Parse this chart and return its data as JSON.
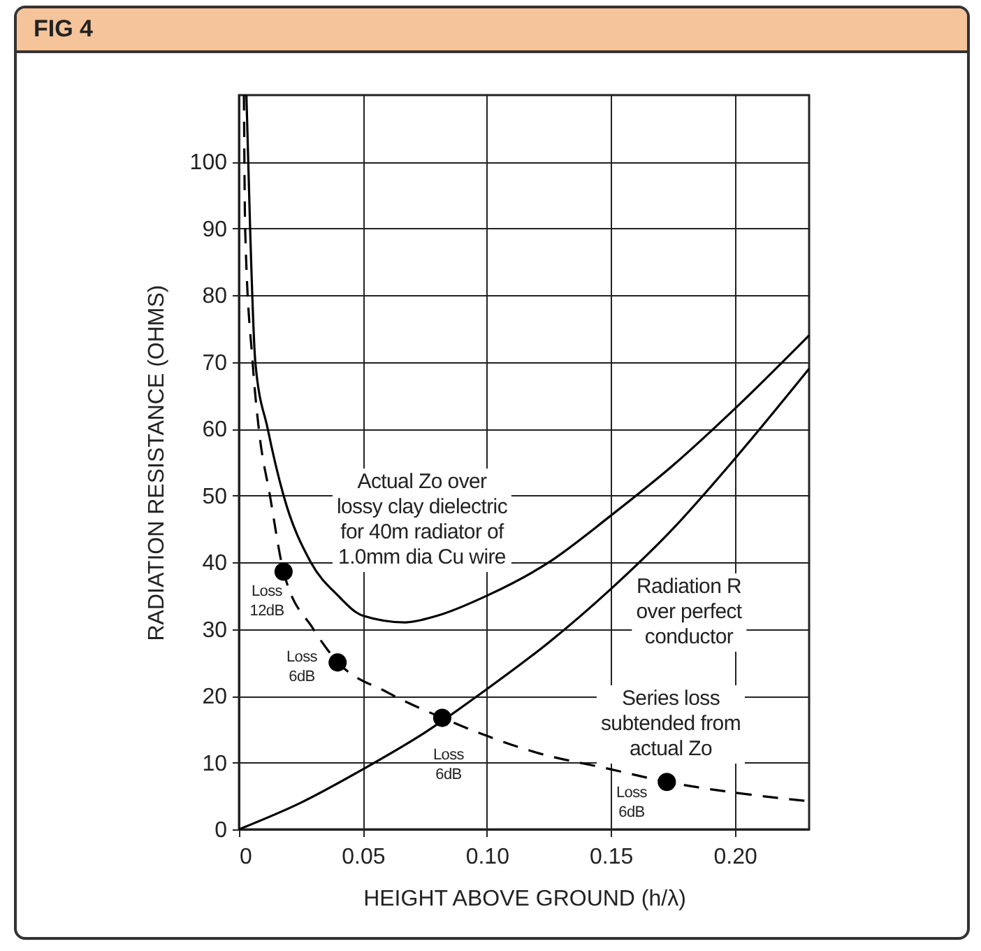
{
  "chart_data": {
    "type": "line",
    "title": "FIG 4",
    "xlabel": "HEIGHT ABOVE GROUND (h/λ)",
    "ylabel": "RADIATION RESISTANCE (OHMS)",
    "xlim": [
      0,
      0.23
    ],
    "ylim": [
      0,
      110
    ],
    "xticks": [
      0,
      0.05,
      {
        "value": 0.1,
        "label": "0.10"
      },
      0.15,
      {
        "value": 0.2,
        "label": "0.20"
      }
    ],
    "yticks": [
      0,
      10,
      20,
      30,
      40,
      50,
      60,
      70,
      80,
      90,
      100
    ],
    "grid": true,
    "series": [
      {
        "color": "#000000",
        "line_style": "solid",
        "x": [
          0.003,
          0.0045,
          0.0066,
          0.0116,
          0.018,
          0.029,
          0.04,
          0.05,
          0.067,
          0.08,
          0.1,
          0.125,
          0.15,
          0.175,
          0.2,
          0.23
        ],
        "values": [
          110,
          90,
          70,
          60,
          50,
          40,
          35,
          32,
          31,
          32,
          35,
          40,
          47,
          54.5,
          63,
          74
        ]
      },
      {
        "color": "#000000",
        "line_style": "solid",
        "x": [
          0,
          0.025,
          0.05,
          0.075,
          0.1,
          0.125,
          0.15,
          0.175,
          0.2,
          0.23
        ],
        "values": [
          0,
          4,
          9,
          14.5,
          21,
          28,
          36,
          45,
          55.5,
          69
        ]
      },
      {
        "color": "#000000",
        "line_style": "dashed",
        "x": [
          0.002,
          0.0025,
          0.0055,
          0.008,
          0.0125,
          0.018,
          0.03,
          0.04,
          0.06,
          0.082,
          0.1,
          0.12,
          0.15,
          0.1726,
          0.2,
          0.23
        ],
        "values": [
          110,
          90,
          70,
          60,
          50,
          38.6,
          30,
          25,
          20.5,
          16.7,
          14,
          11.5,
          9,
          7.1,
          5.5,
          4.2
        ]
      },
      {
        "type": "scatter",
        "color": "#000000",
        "marker": "circle",
        "x": [
          0.018,
          0.0398,
          0.082,
          0.1726
        ],
        "values": [
          38.6,
          25,
          16.7,
          7.1
        ]
      }
    ],
    "annotations": [
      "Actual Zo over\nlossy clay dielectric\nfor 40m radiator of\n1.0mm dia Cu wire",
      "Radiation R\nover perfect\nconductor",
      "Series loss\nsubtended from\nactual Zo",
      "Loss\n12dB",
      "Loss\n6dB",
      "Loss\n6dB",
      "Loss\n6dB"
    ]
  }
}
